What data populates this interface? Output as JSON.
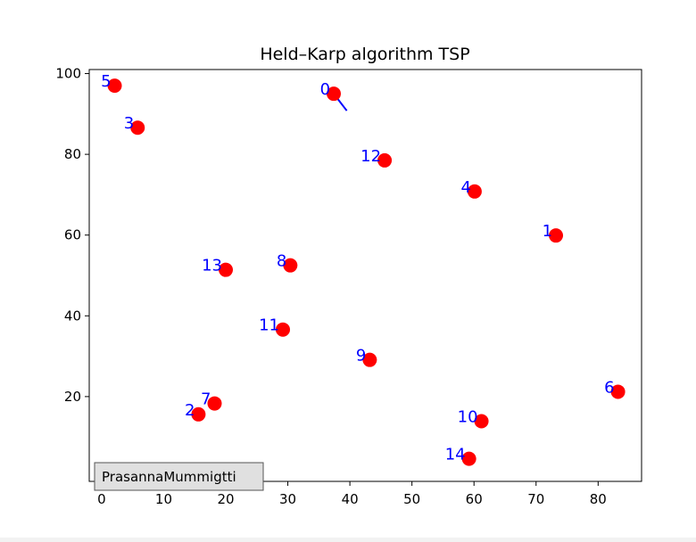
{
  "chart_data": {
    "type": "scatter",
    "title": "Held–Karp algorithm TSP",
    "xlabel": "",
    "ylabel": "",
    "xlim": [
      -2,
      87
    ],
    "ylim": [
      -1,
      101
    ],
    "xticks": [
      0,
      10,
      20,
      30,
      40,
      50,
      60,
      70,
      80
    ],
    "yticks": [
      20,
      40,
      60,
      80,
      100
    ],
    "grid": false,
    "point_color": "#ff0000",
    "label_color": "#0000ff",
    "path_color": "#0000ff",
    "points": [
      {
        "label": "0",
        "x": 37.4,
        "y": 95.0
      },
      {
        "label": "1",
        "x": 73.2,
        "y": 59.9
      },
      {
        "label": "2",
        "x": 15.6,
        "y": 15.6
      },
      {
        "label": "3",
        "x": 5.8,
        "y": 86.6
      },
      {
        "label": "4",
        "x": 60.1,
        "y": 70.8
      },
      {
        "label": "5",
        "x": 2.1,
        "y": 97.0
      },
      {
        "label": "6",
        "x": 83.2,
        "y": 21.2
      },
      {
        "label": "7",
        "x": 18.2,
        "y": 18.3
      },
      {
        "label": "8",
        "x": 30.4,
        "y": 52.5
      },
      {
        "label": "9",
        "x": 43.2,
        "y": 29.1
      },
      {
        "label": "10",
        "x": 61.2,
        "y": 13.9
      },
      {
        "label": "11",
        "x": 29.2,
        "y": 36.6
      },
      {
        "label": "12",
        "x": 45.6,
        "y": 78.5
      },
      {
        "label": "13",
        "x": 20.0,
        "y": 51.4
      },
      {
        "label": "14",
        "x": 59.2,
        "y": 4.6
      }
    ],
    "path_segments": [
      {
        "from": [
          37.4,
          95.0
        ],
        "to": [
          39.5,
          90.8
        ]
      }
    ],
    "legend": {
      "text": "PrasannaMummigtti",
      "placement": "lower-left"
    }
  }
}
